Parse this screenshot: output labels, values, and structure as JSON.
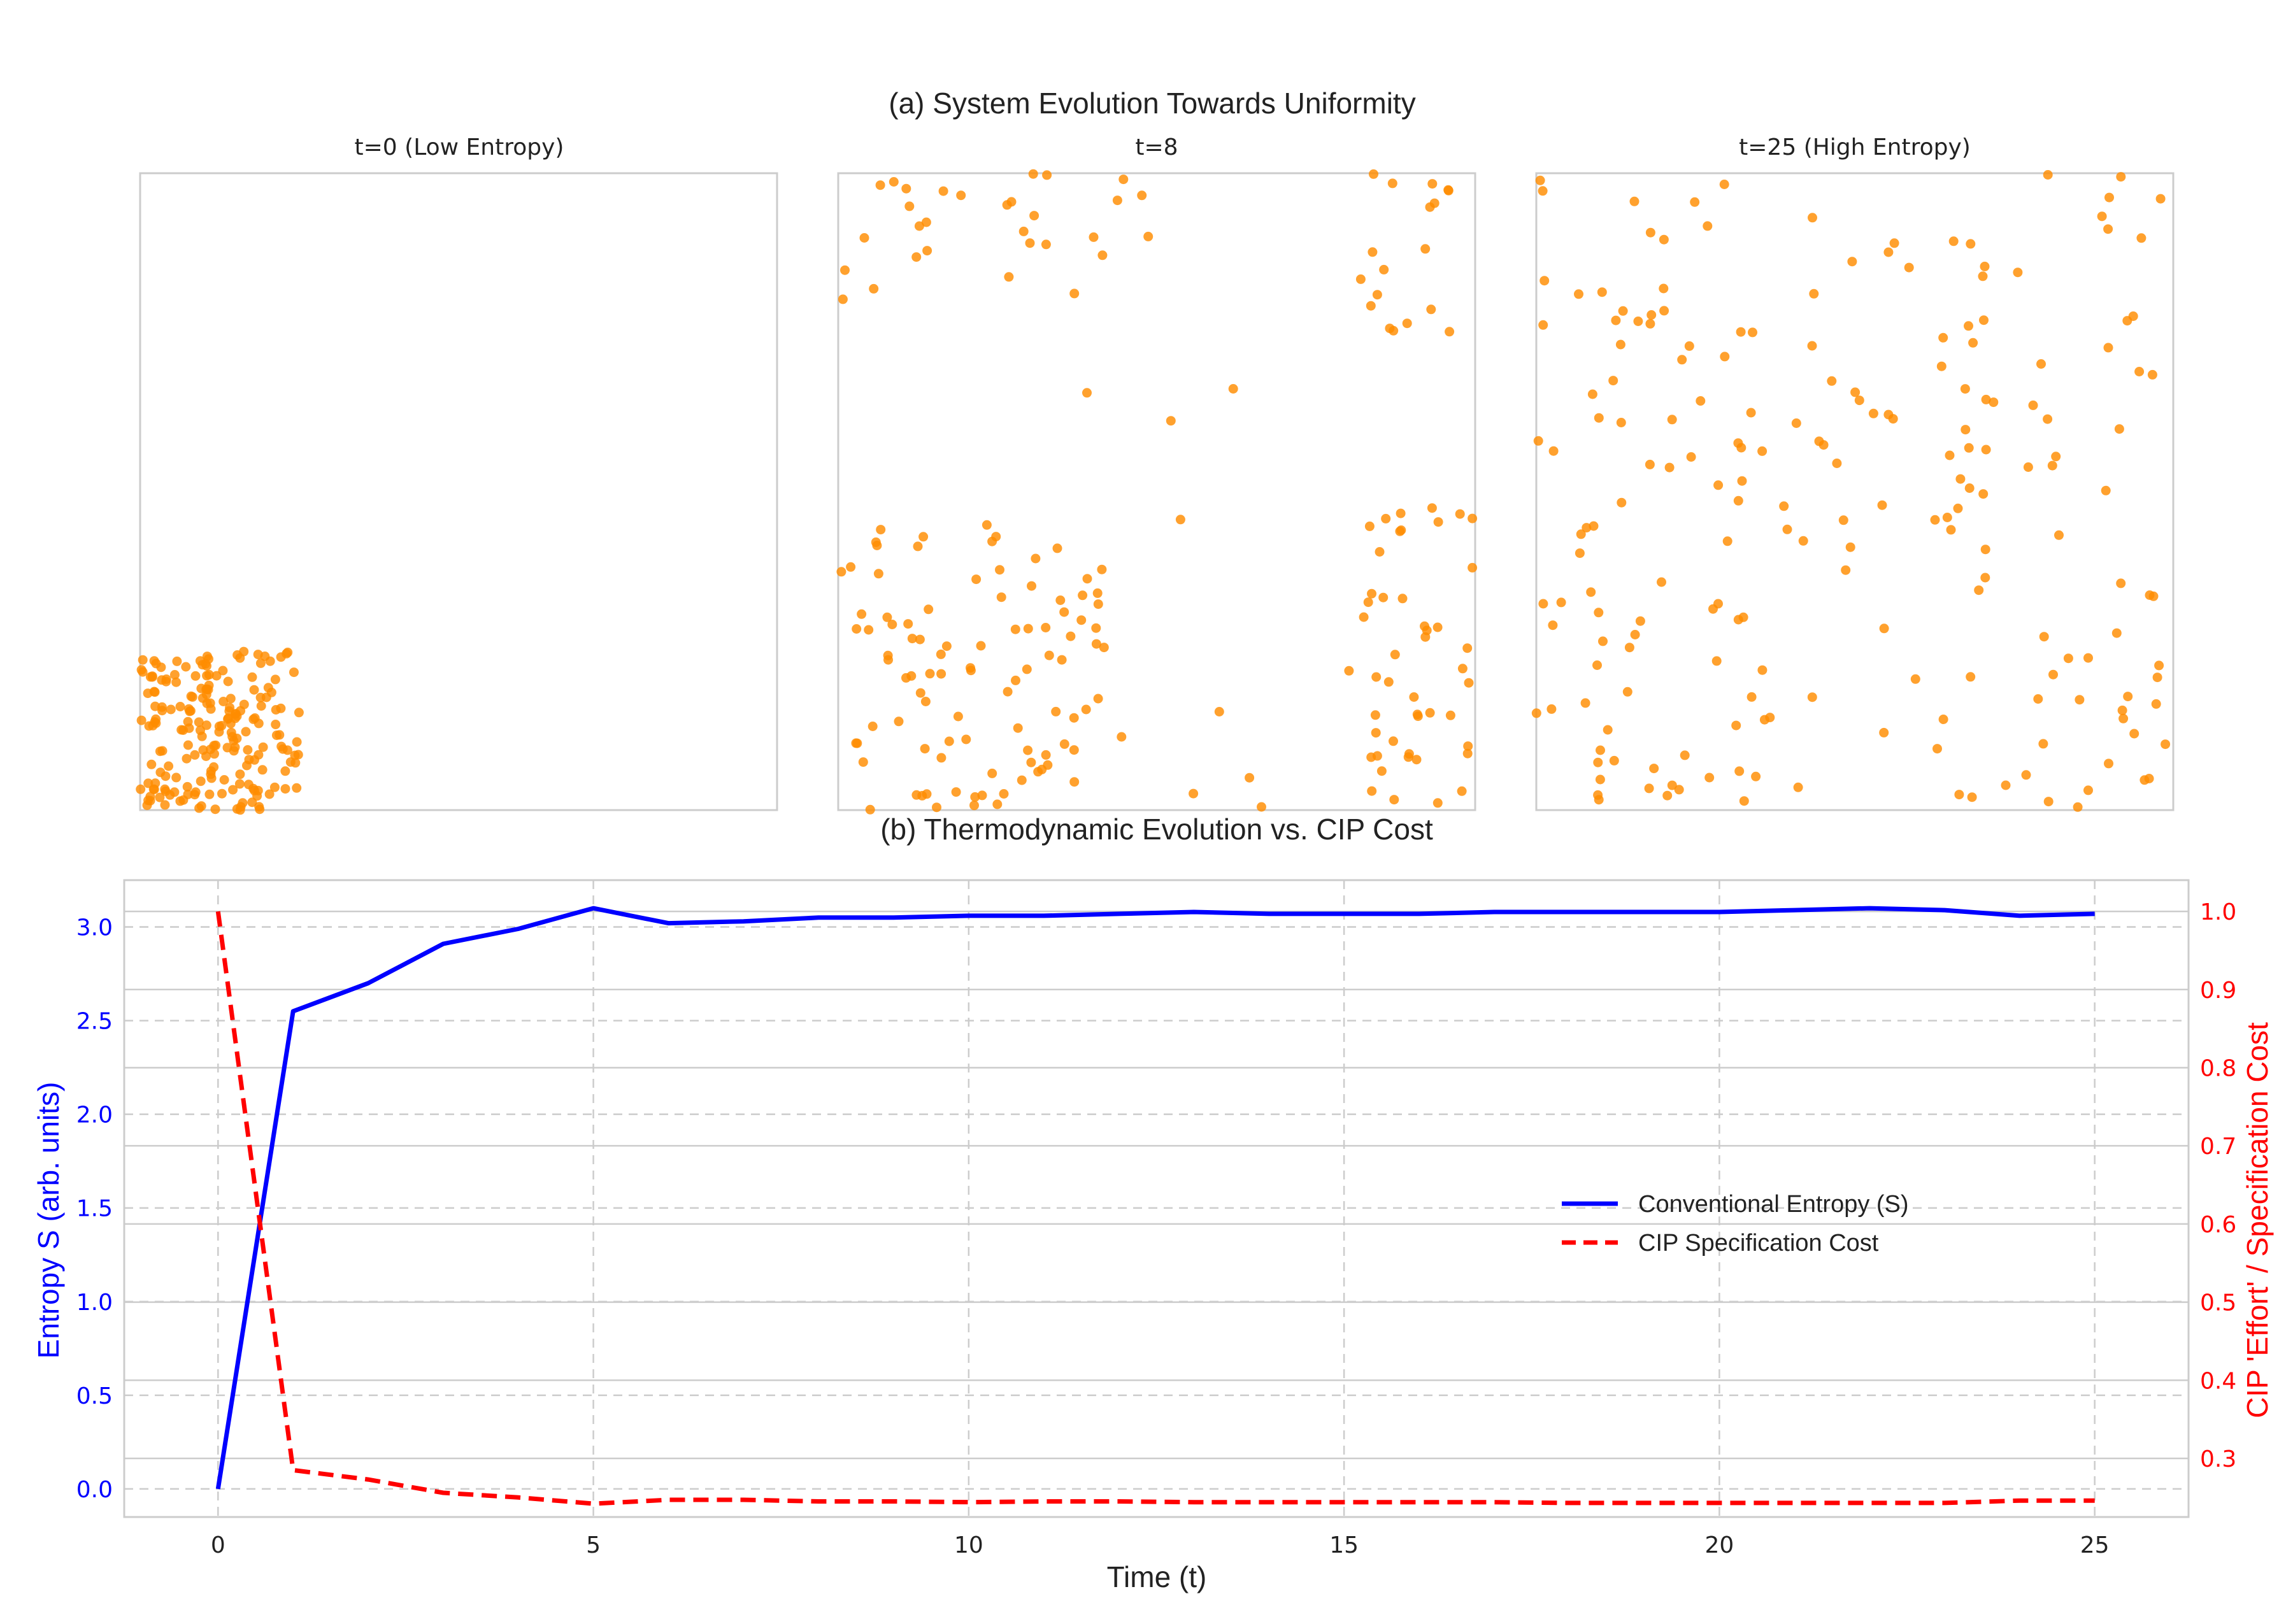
{
  "colors": {
    "entropy": "#0000ff",
    "cip": "#ff0000",
    "particles": "#ff8c00",
    "frame": "#cccccc",
    "grid": "#cccccc"
  },
  "panel_a": {
    "title": "(a) System Evolution Towards Uniformity",
    "snapshots": [
      {
        "label": "t=0 (Low Entropy)"
      },
      {
        "label": "t=8"
      },
      {
        "label": "t=25 (High Entropy)"
      }
    ]
  },
  "chart_data": [
    {
      "type": "scatter",
      "title": "t=0 (Low Entropy)",
      "xlim": [
        0,
        1
      ],
      "ylim": [
        0,
        1
      ],
      "n_points": 200,
      "note_distribution": "clustered in lower-left corner: x in [0, 0.25], y in [0, 0.25]",
      "color": "#ff8c00"
    },
    {
      "type": "scatter",
      "title": "t=8",
      "xlim": [
        0,
        1
      ],
      "ylim": [
        0,
        1
      ],
      "n_points": 200,
      "note_distribution": "partially spread: dense lower-left, scattered near edges",
      "color": "#ff8c00"
    },
    {
      "type": "scatter",
      "title": "t=25 (High Entropy)",
      "xlim": [
        0,
        1
      ],
      "ylim": [
        0,
        1
      ],
      "n_points": 200,
      "note_distribution": "approximately uniform over the unit square",
      "color": "#ff8c00"
    },
    {
      "type": "line",
      "title": "(b) Thermodynamic Evolution vs. CIP Cost",
      "xlabel": "Time (t)",
      "ylabel_left": "Entropy S (arb. units)",
      "ylabel_right": "CIP 'Effort' / Specification Cost",
      "xlim": [
        -1.25,
        26.25
      ],
      "ylim_left": [
        -0.15,
        3.25
      ],
      "ylim_right": [
        0.225,
        1.04
      ],
      "x_ticks": [
        0,
        5,
        10,
        15,
        20,
        25
      ],
      "y_ticks_left": [
        0.0,
        0.5,
        1.0,
        1.5,
        2.0,
        2.5,
        3.0
      ],
      "y_ticks_right": [
        0.3,
        0.4,
        0.5,
        0.6,
        0.7,
        0.8,
        0.9,
        1.0
      ],
      "legend": {
        "placement": "center-right",
        "entries": [
          "Conventional Entropy (S)",
          "CIP Specification Cost"
        ]
      },
      "x": [
        0,
        1,
        2,
        3,
        4,
        5,
        6,
        7,
        8,
        9,
        10,
        11,
        12,
        13,
        14,
        15,
        16,
        17,
        18,
        19,
        20,
        21,
        22,
        23,
        24,
        25
      ],
      "series": [
        {
          "name": "Conventional Entropy (S)",
          "axis": "left",
          "style": "solid",
          "values": [
            0.0,
            2.55,
            2.7,
            2.91,
            2.99,
            3.1,
            3.02,
            3.03,
            3.05,
            3.05,
            3.06,
            3.06,
            3.07,
            3.08,
            3.07,
            3.07,
            3.07,
            3.08,
            3.08,
            3.08,
            3.08,
            3.09,
            3.1,
            3.09,
            3.06,
            3.07
          ]
        },
        {
          "name": "CIP Specification Cost",
          "axis": "right",
          "style": "dashed",
          "values": [
            1.0,
            0.285,
            0.273,
            0.256,
            0.25,
            0.242,
            0.247,
            0.247,
            0.245,
            0.245,
            0.244,
            0.245,
            0.245,
            0.244,
            0.244,
            0.244,
            0.244,
            0.244,
            0.243,
            0.243,
            0.243,
            0.243,
            0.243,
            0.243,
            0.246,
            0.246
          ]
        }
      ],
      "grid": true
    }
  ]
}
